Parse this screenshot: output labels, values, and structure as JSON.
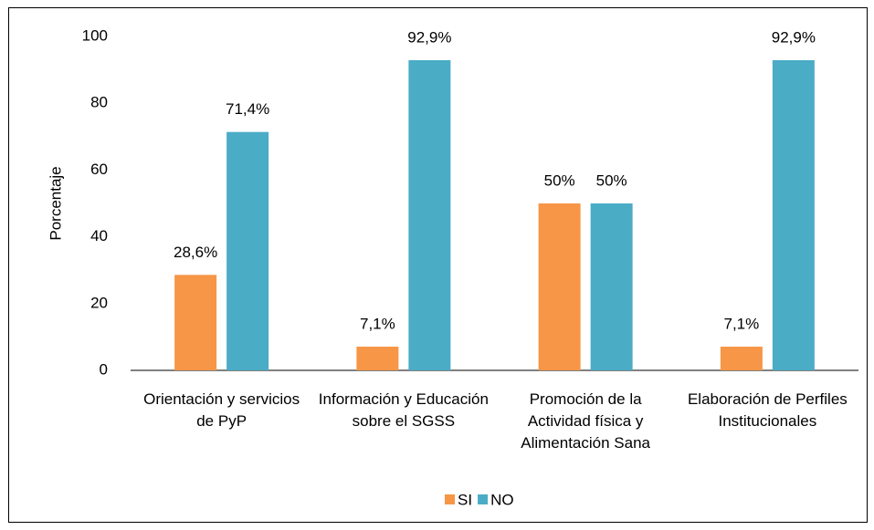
{
  "chart_data": {
    "type": "bar",
    "y_label": "Porcentaje",
    "categories": [
      "Orientación y servicios de PyP",
      "Información y Educación sobre el SGSS",
      "Promoción de la Actividad física y Alimentación Sana",
      "Elaboración de Perfiles Institucionales"
    ],
    "series": [
      {
        "name": "SI",
        "color": "#F79646",
        "values": [
          28.6,
          7.1,
          50,
          7.1
        ],
        "value_labels": [
          "28,6%",
          "7,1%",
          "50%",
          "7,1%"
        ]
      },
      {
        "name": "NO",
        "color": "#4BACC6",
        "values": [
          71.4,
          92.9,
          50,
          92.9
        ],
        "value_labels": [
          "71,4%",
          "92,9%",
          "50%",
          "92,9%"
        ]
      }
    ],
    "ylim": [
      0,
      100
    ],
    "yticks": [
      0,
      20,
      40,
      60,
      80,
      100
    ],
    "grid": false,
    "legend": "bottom"
  }
}
